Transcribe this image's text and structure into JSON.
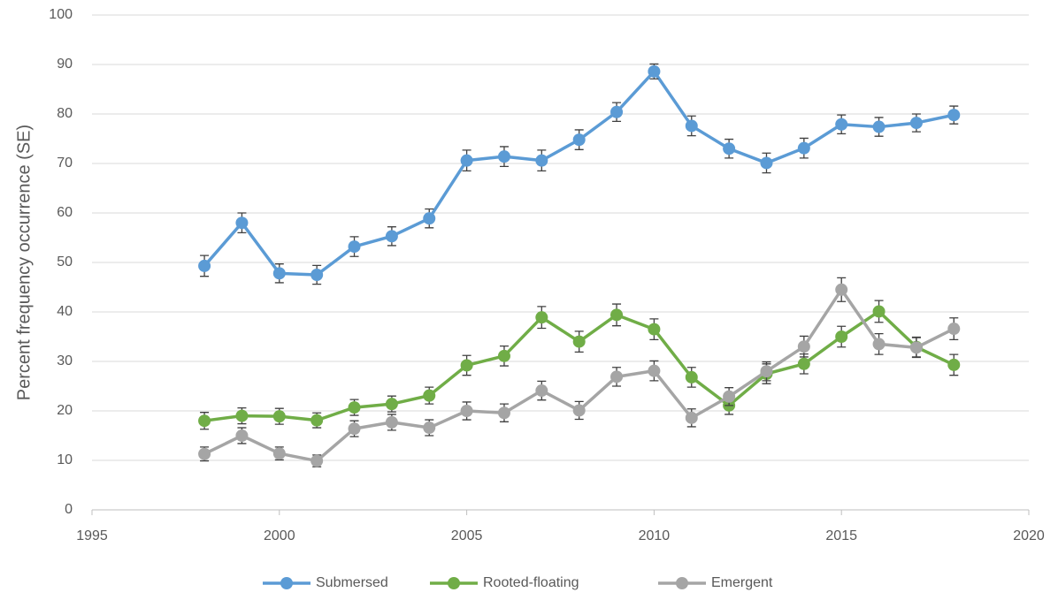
{
  "chart_data": {
    "type": "line",
    "y_label": "Percent frequency occurrence (SE)",
    "x": [
      1998,
      1999,
      2000,
      2001,
      2002,
      2003,
      2004,
      2005,
      2006,
      2007,
      2008,
      2009,
      2010,
      2011,
      2012,
      2013,
      2014,
      2015,
      2016,
      2017,
      2018
    ],
    "series": [
      {
        "name": "Submersed",
        "color": "#5b9bd5",
        "values": [
          49.3,
          58,
          47.8,
          47.5,
          53.2,
          55.3,
          58.9,
          70.6,
          71.4,
          70.6,
          74.8,
          80.4,
          88.6,
          77.6,
          73,
          70.1,
          73.1,
          77.9,
          77.4,
          78.2,
          79.8
        ],
        "errors": [
          2.1,
          2,
          1.9,
          1.9,
          2,
          1.9,
          1.9,
          2.1,
          2,
          2.1,
          2,
          1.9,
          1.5,
          2,
          1.9,
          2,
          2,
          1.9,
          1.9,
          1.8,
          1.8
        ]
      },
      {
        "name": "Rooted-floating",
        "color": "#70ad47",
        "values": [
          18,
          19,
          18.9,
          18.1,
          20.7,
          21.4,
          23.1,
          29.2,
          31.1,
          38.9,
          34,
          39.4,
          36.5,
          26.8,
          21.1,
          27.5,
          29.5,
          35,
          40.1,
          32.9,
          29.3
        ],
        "errors": [
          1.7,
          1.6,
          1.6,
          1.5,
          1.6,
          1.6,
          1.7,
          2,
          2,
          2.2,
          2.1,
          2.2,
          2.1,
          2,
          1.8,
          2,
          2,
          2.1,
          2.2,
          2,
          2.1
        ]
      },
      {
        "name": "Emergent",
        "color": "#a5a5a5",
        "values": [
          11.3,
          15,
          11.4,
          9.9,
          16.4,
          17.7,
          16.6,
          20,
          19.6,
          24.1,
          20.1,
          26.9,
          28.1,
          18.6,
          22.9,
          28,
          33,
          44.5,
          33.5,
          32.8,
          36.6
        ],
        "errors": [
          1.4,
          1.6,
          1.3,
          1.2,
          1.6,
          1.6,
          1.6,
          1.8,
          1.8,
          1.9,
          1.8,
          1.9,
          2,
          1.8,
          1.8,
          1.9,
          2.1,
          2.4,
          2.1,
          2,
          2.2
        ]
      }
    ],
    "xlim": [
      1995,
      2020
    ],
    "xticks": [
      1995,
      2000,
      2005,
      2010,
      2015,
      2020
    ],
    "ylim": [
      0,
      100
    ],
    "yticks": [
      0,
      10,
      20,
      30,
      40,
      50,
      60,
      70,
      80,
      90,
      100
    ],
    "grid": true,
    "legend": "bottom"
  }
}
